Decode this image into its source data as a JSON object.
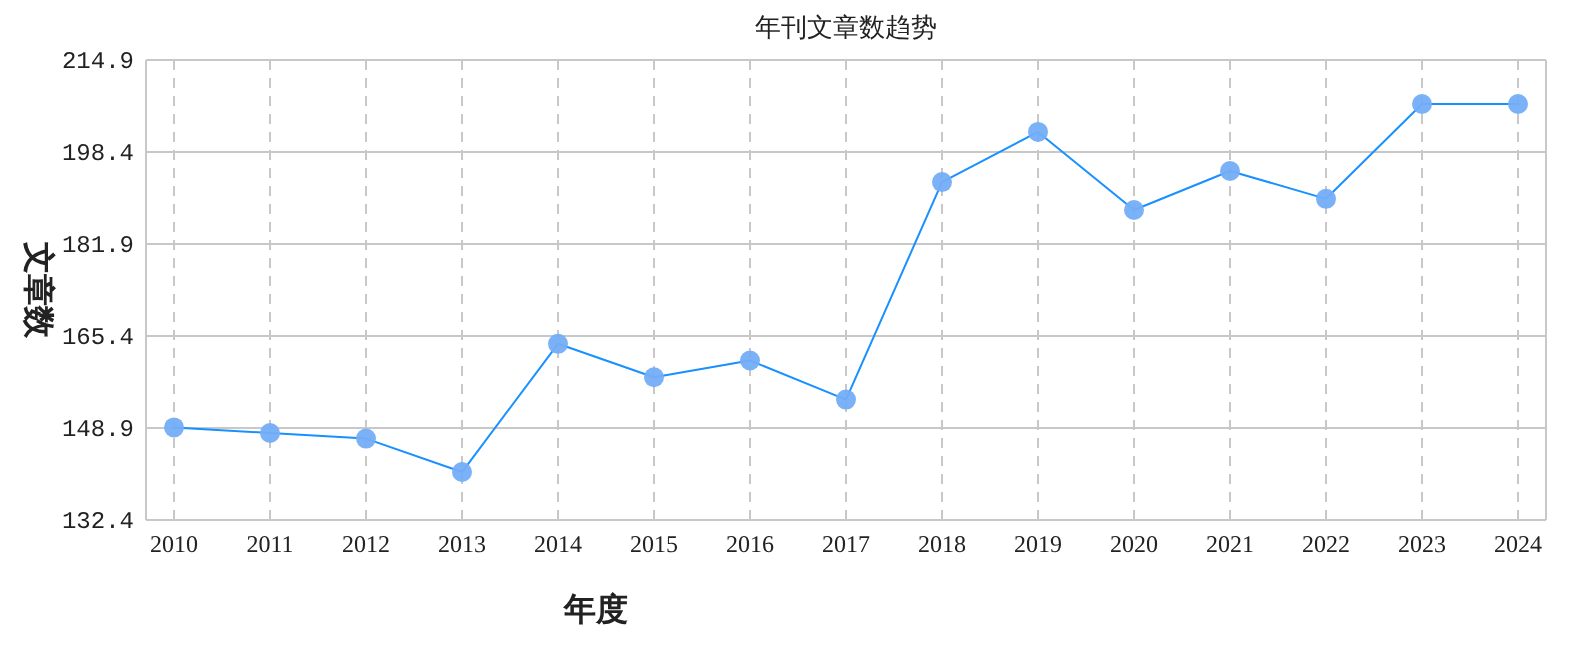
{
  "chart_data": {
    "type": "line",
    "title": "年刊文章数趋势",
    "xlabel": "年度",
    "ylabel": "文章数",
    "categories": [
      "2010",
      "2011",
      "2012",
      "2013",
      "2014",
      "2015",
      "2016",
      "2017",
      "2018",
      "2019",
      "2020",
      "2021",
      "2022",
      "2023",
      "2024"
    ],
    "series": [
      {
        "color": "#1890ff",
        "values": [
          149,
          148,
          147,
          141,
          164,
          158,
          161,
          154,
          193,
          202,
          188,
          195,
          190,
          207,
          207
        ]
      }
    ],
    "ylim": [
      132.4,
      214.9
    ],
    "yticks": [
      {
        "value": 132.4,
        "label": "132.4"
      },
      {
        "value": 148.9,
        "label": "148.9"
      },
      {
        "value": 165.4,
        "label": "165.4"
      },
      {
        "value": 181.9,
        "label": "181.9"
      },
      {
        "value": 198.4,
        "label": "198.4"
      },
      {
        "value": 214.9,
        "label": "214.9"
      }
    ],
    "grid": true,
    "marker": "circle",
    "line_style": "solid"
  }
}
